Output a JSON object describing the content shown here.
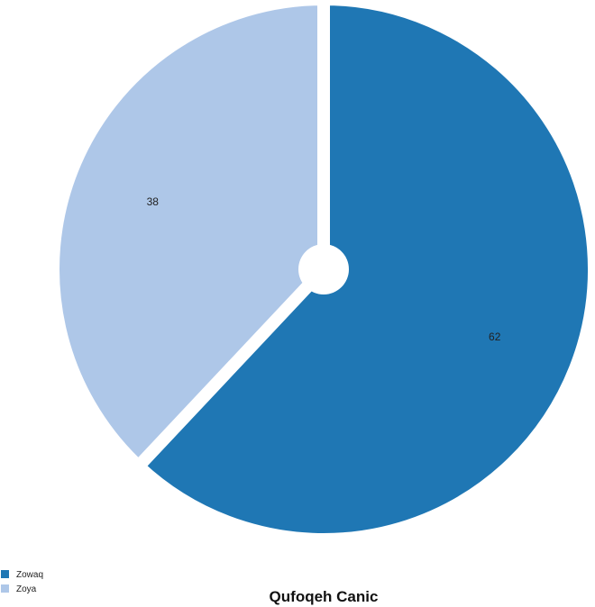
{
  "chart_data": {
    "type": "pie",
    "title": "Qufoqeh Canic",
    "legend_position": "bottom-left",
    "start_angle_deg": 0,
    "slices": [
      {
        "name": "Zowaq",
        "value": 62,
        "label": "62",
        "color": "#1f77b4"
      },
      {
        "name": "Zoya",
        "value": 38,
        "label": "38",
        "color": "#aec7e8"
      }
    ]
  }
}
